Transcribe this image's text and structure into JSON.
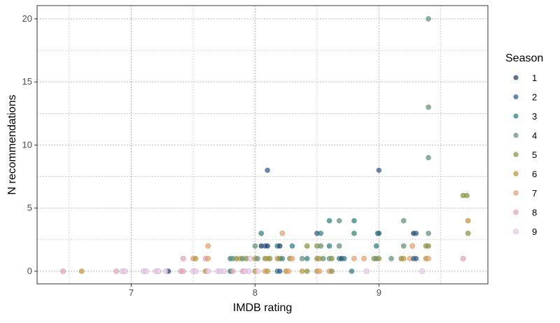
{
  "chart_data": {
    "type": "scatter",
    "title": "",
    "xlabel": "IMDB rating",
    "ylabel": "N recommendations",
    "xlim": [
      6.24,
      9.88
    ],
    "ylim": [
      -1.0,
      21.05
    ],
    "xticks": [
      7,
      8,
      9
    ],
    "yticks": [
      0,
      5,
      10,
      15,
      20
    ],
    "grid": true,
    "legend": {
      "title": "Season",
      "placement": "right",
      "entries": [
        "1",
        "2",
        "3",
        "4",
        "5",
        "6",
        "7",
        "8",
        "9"
      ]
    },
    "colors": {
      "1": "#1f3f7a",
      "2": "#2f5f95",
      "3": "#2b8588",
      "4": "#5e9a72",
      "5": "#8c9a3a",
      "6": "#c79a2a",
      "7": "#f4a261",
      "8": "#f3a3b8",
      "9": "#f0c8f0"
    },
    "points": [
      [
        6.45,
        0,
        8
      ],
      [
        6.6,
        0,
        6
      ],
      [
        6.88,
        0,
        8
      ],
      [
        6.93,
        0,
        9
      ],
      [
        6.95,
        0,
        9
      ],
      [
        7.1,
        0,
        9
      ],
      [
        7.12,
        0,
        9
      ],
      [
        7.2,
        0,
        9
      ],
      [
        7.22,
        0,
        9
      ],
      [
        7.3,
        0,
        1
      ],
      [
        7.28,
        0,
        9
      ],
      [
        7.4,
        0,
        8
      ],
      [
        7.42,
        0,
        8
      ],
      [
        7.5,
        0,
        9
      ],
      [
        7.52,
        0,
        9
      ],
      [
        7.42,
        1,
        8
      ],
      [
        7.5,
        1,
        7
      ],
      [
        7.52,
        1,
        6
      ],
      [
        7.6,
        0,
        6
      ],
      [
        7.62,
        0,
        9
      ],
      [
        7.6,
        1,
        8
      ],
      [
        7.62,
        1,
        7
      ],
      [
        7.62,
        2,
        7
      ],
      [
        7.7,
        0,
        9
      ],
      [
        7.72,
        0,
        9
      ],
      [
        7.75,
        0,
        9
      ],
      [
        7.8,
        0,
        3
      ],
      [
        7.82,
        0,
        8
      ],
      [
        7.8,
        1,
        3
      ],
      [
        7.82,
        1,
        4
      ],
      [
        7.85,
        1,
        5
      ],
      [
        7.88,
        1,
        6
      ],
      [
        7.9,
        0,
        8
      ],
      [
        7.92,
        0,
        9
      ],
      [
        7.95,
        0,
        9
      ],
      [
        7.9,
        1,
        4
      ],
      [
        7.93,
        1,
        5
      ],
      [
        7.96,
        1,
        9
      ],
      [
        8.0,
        0,
        6
      ],
      [
        8.02,
        0,
        9
      ],
      [
        8.0,
        1,
        6
      ],
      [
        8.02,
        1,
        4
      ],
      [
        8.0,
        2,
        4
      ],
      [
        8.05,
        3,
        3
      ],
      [
        8.05,
        2,
        1
      ],
      [
        8.08,
        0,
        7
      ],
      [
        8.1,
        0,
        6
      ],
      [
        8.08,
        1,
        5
      ],
      [
        8.1,
        1,
        6
      ],
      [
        8.12,
        1,
        5
      ],
      [
        8.08,
        2,
        2
      ],
      [
        8.1,
        2,
        1
      ],
      [
        8.1,
        8,
        2
      ],
      [
        8.18,
        0,
        3
      ],
      [
        8.2,
        0,
        2
      ],
      [
        8.18,
        1,
        6
      ],
      [
        8.2,
        1,
        5
      ],
      [
        8.22,
        1,
        3
      ],
      [
        8.18,
        2,
        3
      ],
      [
        8.2,
        2,
        1
      ],
      [
        8.22,
        3,
        7
      ],
      [
        8.25,
        0,
        6
      ],
      [
        8.27,
        0,
        7
      ],
      [
        8.28,
        1,
        5
      ],
      [
        8.3,
        1,
        7
      ],
      [
        8.3,
        2,
        3
      ],
      [
        8.38,
        0,
        6
      ],
      [
        8.42,
        0,
        5
      ],
      [
        8.38,
        1,
        4
      ],
      [
        8.42,
        1,
        3
      ],
      [
        8.42,
        2,
        5
      ],
      [
        8.5,
        0,
        6
      ],
      [
        8.52,
        0,
        7
      ],
      [
        8.5,
        1,
        5
      ],
      [
        8.52,
        1,
        6
      ],
      [
        8.55,
        1,
        4
      ],
      [
        8.5,
        2,
        5
      ],
      [
        8.53,
        2,
        4
      ],
      [
        8.5,
        3,
        2
      ],
      [
        8.53,
        3,
        3
      ],
      [
        8.6,
        0,
        7
      ],
      [
        8.62,
        0,
        5
      ],
      [
        8.6,
        1,
        4
      ],
      [
        8.62,
        1,
        5
      ],
      [
        8.6,
        2,
        3
      ],
      [
        8.6,
        4,
        3
      ],
      [
        8.68,
        1,
        3
      ],
      [
        8.7,
        1,
        1
      ],
      [
        8.72,
        1,
        3
      ],
      [
        8.68,
        2,
        4
      ],
      [
        8.68,
        4,
        4
      ],
      [
        8.78,
        0,
        3
      ],
      [
        8.8,
        1,
        7
      ],
      [
        8.8,
        3,
        3
      ],
      [
        8.8,
        4,
        3
      ],
      [
        8.9,
        0,
        9
      ],
      [
        8.88,
        1,
        7
      ],
      [
        8.96,
        1,
        5
      ],
      [
        8.98,
        1,
        4
      ],
      [
        9.0,
        1,
        5
      ],
      [
        8.98,
        2,
        3
      ],
      [
        9.0,
        3,
        1
      ],
      [
        8.99,
        3,
        3
      ],
      [
        9.0,
        8,
        2
      ],
      [
        9.1,
        1,
        4
      ],
      [
        9.18,
        1,
        5
      ],
      [
        9.2,
        1,
        6
      ],
      [
        9.2,
        2,
        4
      ],
      [
        9.2,
        4,
        4
      ],
      [
        9.25,
        1,
        7
      ],
      [
        9.28,
        1,
        2
      ],
      [
        9.3,
        1,
        2
      ],
      [
        9.27,
        2,
        7
      ],
      [
        9.28,
        3,
        1
      ],
      [
        9.3,
        3,
        2
      ],
      [
        9.35,
        0,
        9
      ],
      [
        9.38,
        1,
        6
      ],
      [
        9.4,
        1,
        7
      ],
      [
        9.38,
        2,
        5
      ],
      [
        9.4,
        2,
        5
      ],
      [
        9.4,
        3,
        4
      ],
      [
        9.4,
        9,
        4
      ],
      [
        9.4,
        13,
        4
      ],
      [
        9.4,
        20,
        4
      ],
      [
        9.68,
        1,
        8
      ],
      [
        9.72,
        3,
        5
      ],
      [
        9.72,
        4,
        6
      ],
      [
        9.68,
        6,
        5
      ],
      [
        9.71,
        6,
        5
      ]
    ]
  }
}
